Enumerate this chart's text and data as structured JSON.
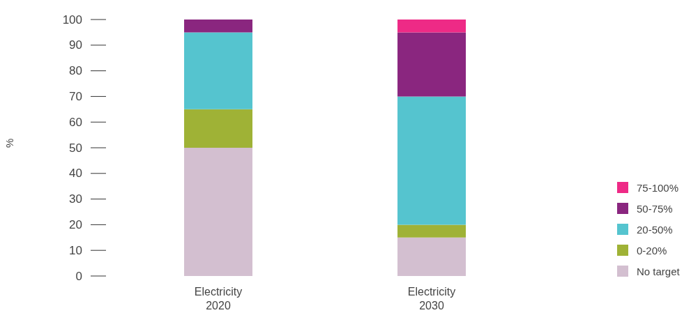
{
  "chart_data": {
    "type": "bar",
    "stacked": true,
    "ylabel": "%",
    "categories": [
      "Electricity 2020",
      "Electricity 2030"
    ],
    "series": [
      {
        "name": "No target",
        "color": "#d3bfd0",
        "values": [
          50,
          15
        ]
      },
      {
        "name": "0-20%",
        "color": "#9fb236",
        "values": [
          15,
          5
        ]
      },
      {
        "name": "20-50%",
        "color": "#55c4cf",
        "values": [
          30,
          50
        ]
      },
      {
        "name": "50-75%",
        "color": "#8a267f",
        "values": [
          5,
          25
        ]
      },
      {
        "name": "75-100%",
        "color": "#ee2a86",
        "values": [
          0,
          5
        ]
      }
    ],
    "ylim": [
      0,
      100
    ],
    "yticks": [
      0,
      10,
      20,
      30,
      40,
      50,
      60,
      70,
      80,
      90,
      100
    ],
    "grid": false,
    "legend": "bottom right"
  }
}
